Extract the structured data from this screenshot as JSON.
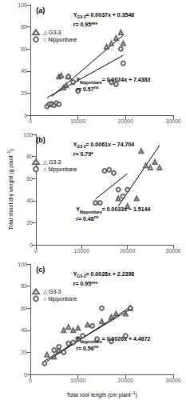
{
  "chart_data": [
    {
      "type": "scatter",
      "title": "(a)",
      "xlim": [
        0,
        30000
      ],
      "ylim": [
        0,
        100
      ],
      "xticks": [
        0,
        10000,
        20000,
        30000
      ],
      "yticks": [
        0,
        20,
        40,
        60,
        80,
        100
      ],
      "grid": false,
      "legend": "upper left",
      "series": [
        {
          "name": "△ G3-3",
          "type": "scatter",
          "marker": "triangle",
          "color": "#444444",
          "x": [
            4500,
            6000,
            6500,
            7000,
            7500,
            8000,
            16000,
            17000,
            18000,
            19000,
            19500
          ],
          "values": [
            10,
            35,
            36,
            25,
            27,
            35,
            62,
            65,
            70,
            75,
            65
          ]
        },
        {
          "name": "○ Nipponbare",
          "type": "scatter",
          "marker": "circle",
          "color": "#444444",
          "x": [
            3500,
            4000,
            4500,
            5000,
            5500,
            6000,
            8000,
            9000,
            10000,
            17000,
            18000,
            19000,
            19500
          ],
          "values": [
            8,
            10,
            10,
            9,
            11,
            10,
            35,
            30,
            22,
            30,
            28,
            60,
            47
          ]
        },
        {
          "type": "line",
          "color": "#000000",
          "x": [
            4500,
            19500
          ],
          "values": [
            17.0048,
            72.5048
          ]
        },
        {
          "type": "line",
          "color": "#000000",
          "x": [
            3500,
            19500
          ],
          "values": [
            15.8383,
            54.2383
          ]
        }
      ],
      "annotations": [
        {
          "text": "YG3-3= 0.0037x + 0.3548",
          "subscript": "G3-3"
        },
        {
          "text": "r= 0.95***"
        },
        {
          "text": "YNipponbare= 0.0024x + 7.4383",
          "subscript": "Nipponbare"
        },
        {
          "text": "r= 0.57ns",
          "superscript": "ns"
        }
      ]
    },
    {
      "type": "scatter",
      "title": "(b)",
      "ylabel": "Total shoot dry weight (g plant−1)",
      "ylabel_superscript": "−1",
      "xlim": [
        0,
        30000
      ],
      "ylim": [
        0,
        100
      ],
      "xticks": [
        0,
        10000,
        20000,
        30000
      ],
      "yticks": [
        0,
        20,
        40,
        60,
        80,
        100
      ],
      "grid": false,
      "legend": "upper left",
      "series": [
        {
          "name": "△ G3-3",
          "type": "scatter",
          "marker": "triangle",
          "color": "#444444",
          "x": [
            18000,
            20000,
            22000,
            23000,
            24000,
            25000,
            26000,
            27000
          ],
          "values": [
            42,
            35,
            42,
            85,
            72,
            70,
            75,
            70
          ]
        },
        {
          "name": "○ Nipponbare",
          "type": "scatter",
          "marker": "circle",
          "color": "#444444",
          "x": [
            13000,
            14000,
            15000,
            16000,
            17000,
            18000,
            19000,
            20000
          ],
          "values": [
            38,
            38,
            67,
            68,
            65,
            50,
            44,
            50
          ]
        },
        {
          "type": "line",
          "color": "#000000",
          "x": [
            18000,
            27000
          ],
          "values": [
            35.096,
            89.996
          ]
        },
        {
          "type": "line",
          "color": "#000000",
          "x": [
            13000,
            20000
          ],
          "values": [
            41.3856,
            64.4856
          ]
        }
      ],
      "annotations": [
        {
          "text": "YG3-3= 0.0061x − 74.704",
          "subscript": "G3-3"
        },
        {
          "text": "r= 0.79*"
        },
        {
          "text": "YNipponbare= 0.0033x − 1.5144",
          "subscript": "Nipponbare"
        },
        {
          "text": "r= 0.48ns",
          "superscript": "ns"
        }
      ]
    },
    {
      "type": "scatter",
      "title": "(c)",
      "xlabel": "Total root length (cm plant−1)",
      "xlabel_superscript": "−1",
      "xlim": [
        0,
        30000
      ],
      "ylim": [
        0,
        100
      ],
      "xticks": [
        0,
        10000,
        20000,
        30000
      ],
      "yticks": [
        0,
        20,
        40,
        60,
        80,
        100
      ],
      "grid": false,
      "legend": "upper left",
      "series": [
        {
          "name": "△ G3-3",
          "type": "scatter",
          "marker": "triangle",
          "color": "#444444",
          "x": [
            3500,
            5000,
            6000,
            7000,
            8000,
            9000,
            10000,
            12000,
            15000,
            17000,
            18000,
            20000,
            21000
          ],
          "values": [
            18,
            16,
            22,
            40,
            43,
            40,
            42,
            45,
            48,
            52,
            55,
            55,
            60
          ]
        },
        {
          "name": "○ Nipponbare",
          "type": "scatter",
          "marker": "circle",
          "color": "#444444",
          "x": [
            3000,
            5000,
            6000,
            7000,
            8000,
            9000,
            10000,
            11000,
            13000,
            14000,
            15000,
            17000,
            20000,
            21000
          ],
          "values": [
            10,
            22,
            25,
            20,
            28,
            29,
            32,
            35,
            44,
            32,
            60,
            30,
            35,
            60
          ]
        },
        {
          "type": "line",
          "color": "#000000",
          "x": [
            3500,
            21000
          ],
          "values": [
            12.0398,
            61.0398
          ]
        },
        {
          "type": "line",
          "color": "#000000",
          "x": [
            3000,
            21000
          ],
          "values": [
            12.2872,
            59.0872
          ]
        }
      ],
      "annotations": [
        {
          "text": "YG3-3= 0.0028x + 2.2398",
          "subscript": "G3-3"
        },
        {
          "text": "r= 0.95***"
        },
        {
          "text": "YNipponbare= 0.0026x + 4.4872",
          "subscript": "Nipponbare"
        },
        {
          "text": "r= 0.56ns",
          "superscript": "ns"
        }
      ]
    }
  ]
}
